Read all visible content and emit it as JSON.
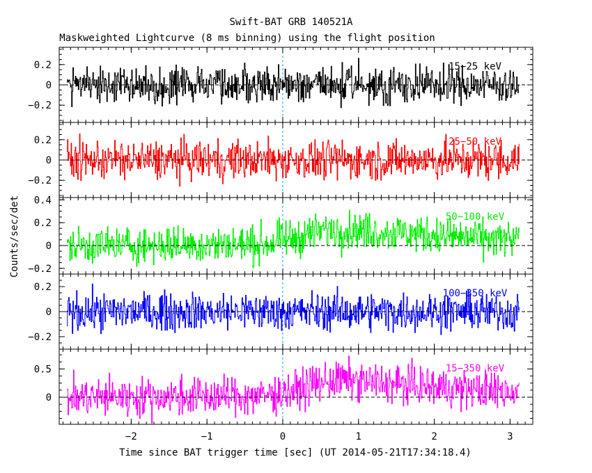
{
  "chart_data": {
    "type": "line",
    "title": "Swift-BAT GRB 140521A",
    "subtitle": "Maskweighted Lightcurve (8 ms binning) using the flight position",
    "xlabel": "Time since BAT trigger time [sec] (UT 2014-05-21T17:34:18.4)",
    "ylabel": "Counts/sec/det",
    "xlim": [
      -2.95,
      3.3
    ],
    "x_range_data": [
      -2.85,
      3.12
    ],
    "trigger_time_marker": 0,
    "x_ticks": [
      -2,
      -1,
      0,
      1,
      2,
      3
    ],
    "panels": [
      {
        "name": "15-25 keV",
        "label": "15−25 keV",
        "color": "#000000",
        "ylim": [
          -0.37,
          0.37
        ],
        "y_ticks": [
          -0.2,
          0,
          0.2
        ],
        "y_tick_labels": [
          "−0.2",
          "0",
          "0.2"
        ],
        "noise": 0.09,
        "trend": [
          [
            -2.85,
            0.0
          ],
          [
            3.12,
            0.0
          ]
        ]
      },
      {
        "name": "25-50 keV",
        "label": "25−50 keV",
        "color": "#ff0000",
        "ylim": [
          -0.37,
          0.37
        ],
        "y_ticks": [
          -0.2,
          0,
          0.2
        ],
        "y_tick_labels": [
          "−0.2",
          "0",
          "0.2"
        ],
        "noise": 0.095,
        "trend": [
          [
            -2.85,
            0.0
          ],
          [
            3.12,
            0.0
          ]
        ]
      },
      {
        "name": "50-100 keV",
        "label": "50−100 keV",
        "color": "#00ee00",
        "ylim": [
          -0.25,
          0.42
        ],
        "y_ticks": [
          -0.2,
          0,
          0.2,
          0.4
        ],
        "y_tick_labels": [
          "−0.2",
          "0",
          "0.2",
          "0.4"
        ],
        "noise": 0.08,
        "trend": [
          [
            -2.85,
            0.0
          ],
          [
            -0.3,
            0.01
          ],
          [
            0.1,
            0.06
          ],
          [
            0.6,
            0.14
          ],
          [
            1.0,
            0.13
          ],
          [
            1.6,
            0.11
          ],
          [
            2.4,
            0.07
          ],
          [
            3.12,
            0.04
          ]
        ]
      },
      {
        "name": "100-350 keV",
        "label": "100−350 keV",
        "color": "#0000ff",
        "ylim": [
          -0.3,
          0.3
        ],
        "y_ticks": [
          -0.2,
          0,
          0.2
        ],
        "y_tick_labels": [
          "−0.2",
          "0",
          "0.2"
        ],
        "noise": 0.075,
        "trend": [
          [
            -2.85,
            0.0
          ],
          [
            3.12,
            0.0
          ]
        ]
      },
      {
        "name": "15-350 keV",
        "label": "15−350 keV",
        "color": "#ff00ff",
        "ylim": [
          -0.48,
          0.85
        ],
        "y_ticks": [
          0,
          0.5
        ],
        "y_tick_labels": [
          "0",
          "0.5"
        ],
        "noise": 0.17,
        "trend": [
          [
            -2.85,
            0.0
          ],
          [
            -0.3,
            0.02
          ],
          [
            0.15,
            0.12
          ],
          [
            0.6,
            0.3
          ],
          [
            1.0,
            0.28
          ],
          [
            1.6,
            0.22
          ],
          [
            2.4,
            0.14
          ],
          [
            3.12,
            0.1
          ]
        ]
      }
    ],
    "x_tick_labels": [
      "−2",
      "−1",
      "0",
      "1",
      "2",
      "3"
    ]
  }
}
